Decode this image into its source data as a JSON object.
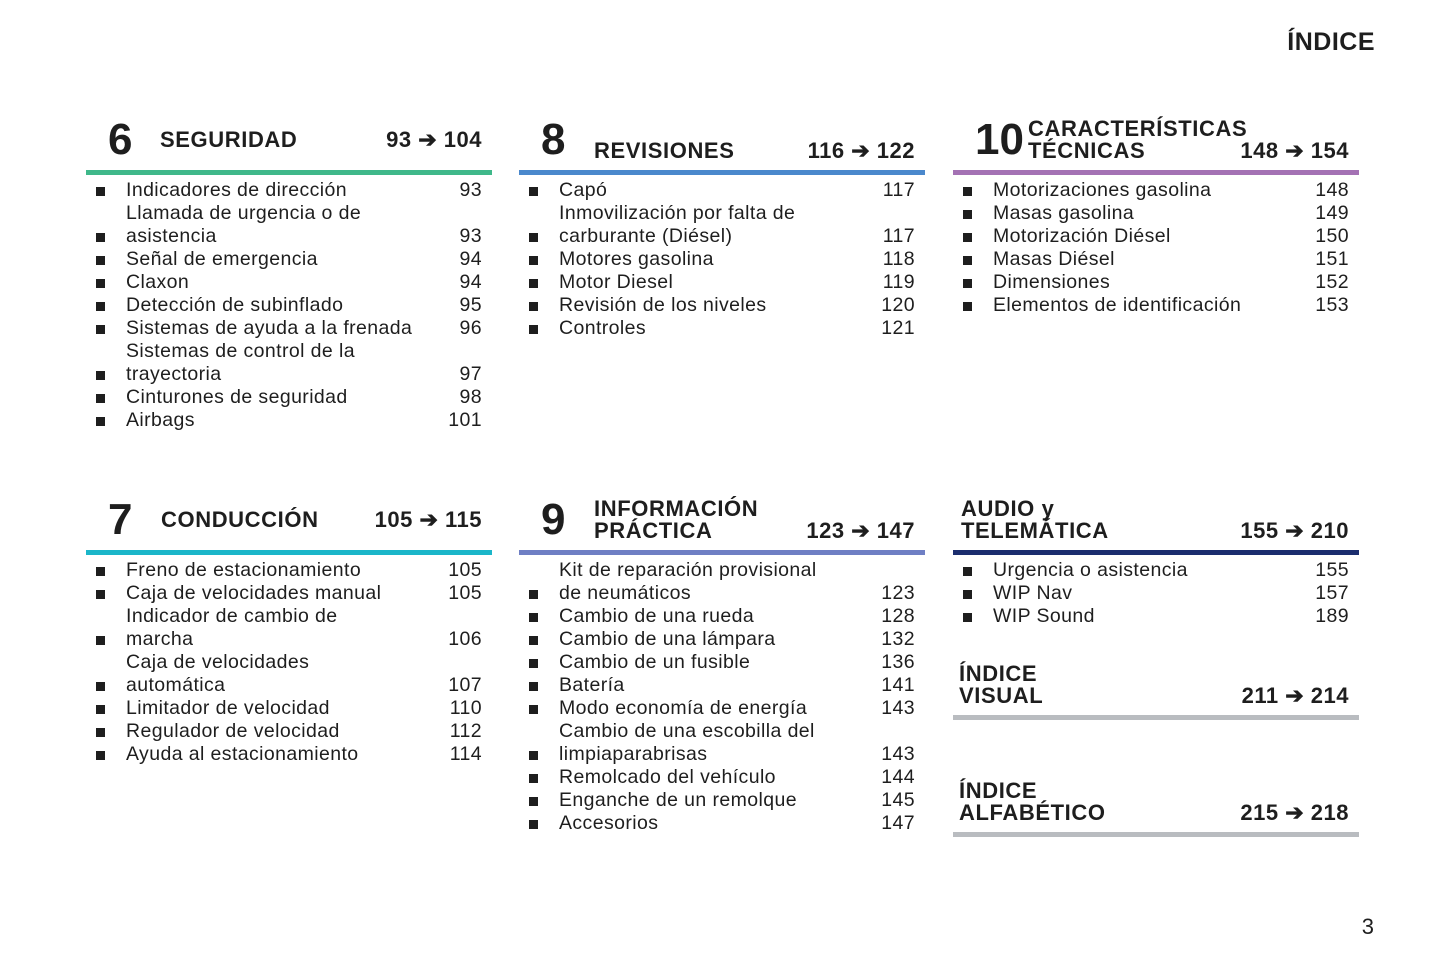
{
  "page_title": "ÍNDICE",
  "page_number": "3",
  "sections": [
    {
      "num": "6",
      "title": "SEGURIDAD",
      "range": "93 ➔ 104",
      "color": "#3fb88a",
      "items": [
        [
          "Indicadores de dirección",
          "93"
        ],
        [
          "Llamada de urgencia o de\nasistencia",
          "93"
        ],
        [
          "Señal de emergencia",
          "94"
        ],
        [
          "Claxon",
          "94"
        ],
        [
          "Detección de subinflado",
          "95"
        ],
        [
          "Sistemas de ayuda a la frenada",
          "96"
        ],
        [
          "Sistemas de control de la\ntrayectoria",
          "97"
        ],
        [
          "Cinturones de seguridad",
          "98"
        ],
        [
          "Airbags",
          "101"
        ]
      ]
    },
    {
      "num": "8",
      "title": "REVISIONES\n ",
      "range": "116 ➔ 122",
      "color": "#4a88cc",
      "items": [
        [
          "Capó",
          "117"
        ],
        [
          "Inmovilización por falta de\ncarburante (Diésel)",
          "117"
        ],
        [
          "Motores gasolina",
          "118"
        ],
        [
          "Motor Diesel",
          "119"
        ],
        [
          "Revisión de los niveles",
          "120"
        ],
        [
          "Controles",
          "121"
        ]
      ]
    },
    {
      "num": "10",
      "title": "CARACTERÍSTICAS\nTÉCNICAS",
      "range": "148 ➔ 154",
      "color": "#a472b4",
      "items": [
        [
          "Motorizaciones gasolina",
          "148"
        ],
        [
          "Masas gasolina",
          "149"
        ],
        [
          "Motorización Diésel",
          "150"
        ],
        [
          "Masas Diésel",
          "151"
        ],
        [
          "Dimensiones",
          "152"
        ],
        [
          "Elementos de identificación",
          "153"
        ]
      ]
    },
    {
      "num": "7",
      "title": "CONDUCCIÓN",
      "range": "105 ➔ 115",
      "color": "#1bb6c9",
      "items": [
        [
          "Freno de estacionamiento",
          "105"
        ],
        [
          "Caja de velocidades manual",
          "105"
        ],
        [
          "Indicador de cambio de\nmarcha",
          "106"
        ],
        [
          "Caja de velocidades\nautomática",
          "107"
        ],
        [
          "Limitador de velocidad",
          "110"
        ],
        [
          "Regulador de velocidad",
          "112"
        ],
        [
          "Ayuda al estacionamiento",
          "114"
        ]
      ]
    },
    {
      "num": "9",
      "title": "INFORMACIÓN\nPRÁCTICA",
      "range": "123 ➔ 147",
      "color": "#6f7fc4",
      "items": [
        [
          "Kit de reparación provisional\nde neumáticos",
          "123"
        ],
        [
          "Cambio de una rueda",
          "128"
        ],
        [
          "Cambio de una lámpara",
          "132"
        ],
        [
          "Cambio de un fusible",
          "136"
        ],
        [
          "Batería",
          "141"
        ],
        [
          "Modo economía de energía",
          "143"
        ],
        [
          "Cambio de una escobilla del\nlimpiaparabrisas",
          "143"
        ],
        [
          "Remolcado del vehículo",
          "144"
        ],
        [
          "Enganche de un remolque",
          "145"
        ],
        [
          "Accesorios",
          "147"
        ]
      ]
    },
    {
      "num": "",
      "title": "AUDIO y\nTELEMÁTICA",
      "range": "155 ➔ 210",
      "color": "#1b2d6e",
      "items": [
        [
          "Urgencia o asistencia",
          "155"
        ],
        [
          "WIP Nav",
          "157"
        ],
        [
          "WIP Sound",
          "189"
        ]
      ]
    },
    {
      "num": "",
      "title": "ÍNDICE\nVISUAL",
      "range": "211 ➔ 214",
      "color": "#b9bcc0",
      "items": []
    },
    {
      "num": "",
      "title": "ÍNDICE\nALFABÉTICO",
      "range": "215 ➔ 218",
      "color": "#b9bcc0",
      "items": []
    }
  ]
}
